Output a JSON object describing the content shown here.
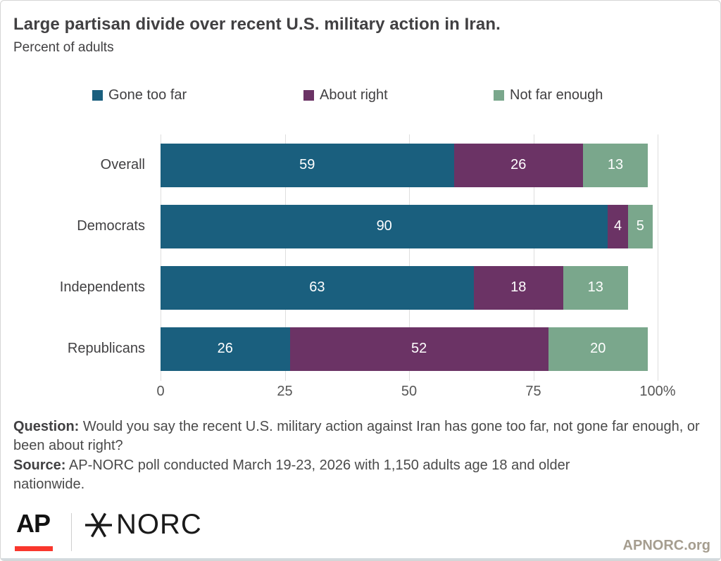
{
  "header": {
    "title": "Large partisan divide over recent U.S. military action in Iran.",
    "subtitle": "Percent of adults"
  },
  "chart_data": {
    "type": "bar",
    "stacked": true,
    "orientation": "horizontal",
    "categories": [
      "Overall",
      "Democrats",
      "Independents",
      "Republicans"
    ],
    "series": [
      {
        "name": "Gone too far",
        "color": "#1a5f7e",
        "values": [
          59,
          90,
          63,
          26
        ]
      },
      {
        "name": "About right",
        "color": "#6b3365",
        "values": [
          26,
          4,
          18,
          52
        ]
      },
      {
        "name": "Not far enough",
        "color": "#7aa78c",
        "values": [
          13,
          5,
          13,
          20
        ]
      }
    ],
    "xlim": [
      0,
      100
    ],
    "x_ticks": [
      "0",
      "25",
      "50",
      "75",
      "100%"
    ],
    "grid": true,
    "legend_position": "top",
    "value_label_color": "#ffffff"
  },
  "notes": {
    "question_label": "Question:",
    "question_text": " Would you say the recent U.S. military action against Iran has gone too far, not gone far enough, or been about right?",
    "source_label": "Source:",
    "source_text": " AP-NORC poll conducted March 19-23, 2026 with 1,150 adults age 18 and older nationwide."
  },
  "footer": {
    "ap_text": "AP",
    "norc_text": "NORC",
    "site": "APNORC.org"
  }
}
